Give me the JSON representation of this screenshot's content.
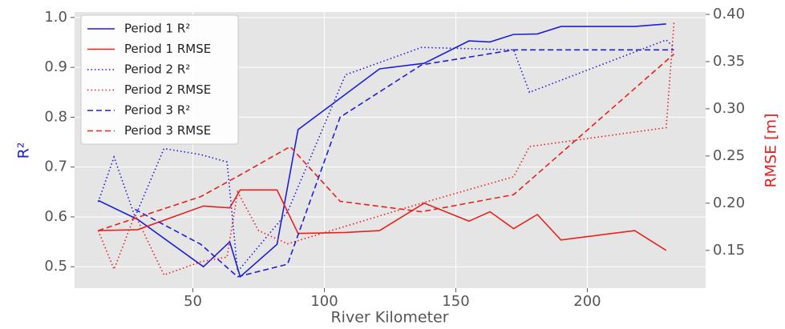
{
  "chart_data": {
    "type": "line",
    "xlabel": "River Kilometer",
    "ylabel": "R²",
    "y2label": "RMSE [m]",
    "xlim": [
      5,
      245
    ],
    "xticks": [
      50,
      100,
      150,
      200
    ],
    "ylim": [
      0.457,
      1.011
    ],
    "yticks": [
      0.5,
      0.6,
      0.7,
      0.8,
      0.9,
      {
        "value": 1.0,
        "label": "1.0"
      }
    ],
    "y2lim": [
      0.11,
      0.4025
    ],
    "y2ticks": [
      0.15,
      {
        "value": 0.2,
        "label": "0.20"
      },
      0.25,
      {
        "value": 0.3,
        "label": "0.30"
      },
      0.35,
      {
        "value": 0.4,
        "label": "0.40"
      }
    ],
    "ylabel_color": "#1f1fd6",
    "y2label_color": "#e8211f",
    "grid": true,
    "legend": "upper left",
    "series": [
      {
        "name": "Period 1 R²",
        "color": "#1f1fd6",
        "linestyle": "solid",
        "x": [
          14,
          29,
          54,
          64,
          68,
          82,
          90,
          121,
          138,
          155,
          163,
          172,
          181,
          190,
          218,
          230
        ],
        "values": [
          0.633,
          0.595,
          0.5,
          0.55,
          0.48,
          0.545,
          0.775,
          0.897,
          0.908,
          0.953,
          0.951,
          0.966,
          0.967,
          0.982,
          0.982,
          0.987
        ]
      },
      {
        "name": "Period 1 RMSE",
        "color": "#e8211f",
        "linestyle": "solid",
        "axis": "y2",
        "x": [
          14,
          29,
          54,
          64,
          68,
          82,
          90,
          108,
          121,
          138,
          155,
          163,
          172,
          181,
          190,
          218,
          230
        ],
        "values": [
          0.171,
          0.172,
          0.197,
          0.195,
          0.214,
          0.214,
          0.168,
          0.169,
          0.171,
          0.2,
          0.181,
          0.191,
          0.173,
          0.188,
          0.161,
          0.171,
          0.15
        ]
      },
      {
        "name": "Period 2 R²",
        "color": "#1f1fd6",
        "linestyle": "dotted",
        "x": [
          14,
          20,
          28,
          39,
          53,
          63,
          67,
          86,
          108,
          137,
          172,
          178,
          230,
          233
        ],
        "values": [
          0.63,
          0.72,
          0.6,
          0.737,
          0.725,
          0.71,
          0.49,
          0.61,
          0.885,
          0.94,
          0.935,
          0.85,
          0.955,
          0.94
        ]
      },
      {
        "name": "Period 2 RMSE",
        "color": "#e8211f",
        "linestyle": "dotted",
        "axis": "y2",
        "x": [
          14,
          20,
          28,
          39,
          53,
          63,
          67,
          75,
          86,
          137,
          172,
          178,
          230,
          233
        ],
        "values": [
          0.171,
          0.13,
          0.188,
          0.124,
          0.138,
          0.143,
          0.212,
          0.171,
          0.157,
          0.2,
          0.228,
          0.26,
          0.28,
          0.392
        ]
      },
      {
        "name": "Period 3 R²",
        "color": "#1f1fd6",
        "linestyle": "dashed",
        "x": [
          28,
          53,
          67,
          86,
          106,
          137,
          172,
          233
        ],
        "values": [
          0.615,
          0.545,
          0.48,
          0.505,
          0.8,
          0.905,
          0.935,
          0.935
        ]
      },
      {
        "name": "Period 3 RMSE",
        "color": "#e8211f",
        "linestyle": "dashed",
        "axis": "y2",
        "x": [
          14,
          28,
          53,
          68,
          87,
          106,
          137,
          172,
          233
        ],
        "values": [
          0.171,
          0.184,
          0.207,
          0.23,
          0.26,
          0.202,
          0.191,
          0.209,
          0.358
        ]
      }
    ]
  }
}
